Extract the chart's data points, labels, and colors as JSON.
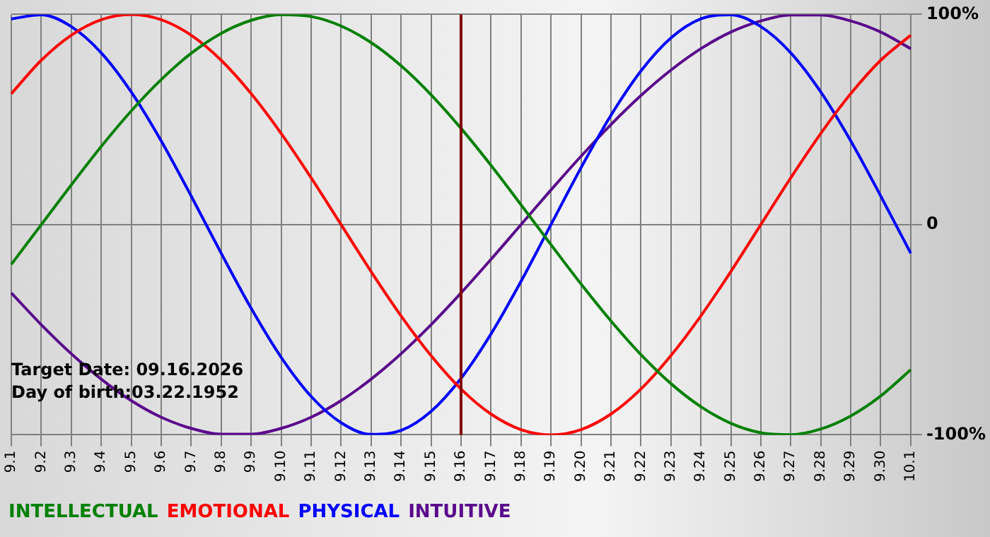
{
  "chart_data": {
    "type": "line",
    "categories": [
      "9.1",
      "9.2",
      "9.3",
      "9.4",
      "9.5",
      "9.6",
      "9.7",
      "9.8",
      "9.9",
      "9.10",
      "9.11",
      "9.12",
      "9.13",
      "9.14",
      "9.15",
      "9.16",
      "9.17",
      "9.18",
      "9.19",
      "9.20",
      "9.21",
      "9.22",
      "9.23",
      "9.24",
      "9.25",
      "9.26",
      "9.27",
      "9.28",
      "9.29",
      "9.30",
      "10.1"
    ],
    "series": [
      {
        "name": "INTELLECTUAL",
        "color": "#008000",
        "values": [
          -18.9,
          0,
          18.9,
          37.2,
          54.1,
          69.0,
          81.5,
          91.0,
          97.2,
          99.9,
          99.0,
          94.5,
          86.6,
          75.6,
          61.8,
          45.8,
          28.2,
          9.5,
          -9.5,
          -28.2,
          -45.8,
          -61.8,
          -75.6,
          -86.6,
          -94.5,
          -99.0,
          -99.9,
          -97.2,
          -91.0,
          -81.5,
          -69.0
        ]
      },
      {
        "name": "EMOTIONAL",
        "color": "#ff0000",
        "values": [
          62.3,
          78.2,
          90.1,
          97.5,
          100,
          97.5,
          90.1,
          78.2,
          62.3,
          43.4,
          22.3,
          0,
          -22.3,
          -43.4,
          -62.3,
          -78.2,
          -90.1,
          -97.5,
          -100,
          -97.5,
          -90.1,
          -78.2,
          -62.3,
          -43.4,
          -22.3,
          0,
          22.3,
          43.4,
          62.3,
          78.2,
          90.1
        ]
      },
      {
        "name": "PHYSICAL",
        "color": "#0000ff",
        "values": [
          97.9,
          99.8,
          94.2,
          81.7,
          63.1,
          39.8,
          13.6,
          -13.6,
          -39.8,
          -63.1,
          -81.7,
          -94.2,
          -99.8,
          -97.9,
          -88.8,
          -73.1,
          -52.0,
          -27.0,
          0,
          27.0,
          52.0,
          73.1,
          88.8,
          97.9,
          99.8,
          94.2,
          81.7,
          63.1,
          39.8,
          13.6,
          -13.6
        ]
      },
      {
        "name": "INTUITIVE",
        "color": "#5a0a8c",
        "values": [
          -32.5,
          -47.6,
          -61.4,
          -73.5,
          -83.7,
          -91.6,
          -96.9,
          -99.7,
          -99.7,
          -96.9,
          -91.6,
          -83.7,
          -73.5,
          -61.4,
          -47.6,
          -32.5,
          -16.5,
          0,
          16.5,
          32.5,
          47.6,
          61.4,
          73.5,
          83.7,
          91.6,
          96.9,
          99.7,
          99.7,
          96.9,
          91.6,
          83.7
        ]
      }
    ],
    "ylim": [
      -100,
      100
    ],
    "yticks": [
      {
        "value": -100,
        "label": "-100%"
      },
      0,
      {
        "value": 100,
        "label": "100%"
      }
    ],
    "grid": true,
    "legend": "bottom",
    "marker": "none",
    "line_style": "solid",
    "ref_lines": [
      {
        "axis": "x",
        "value": "9.16",
        "color": "#800000"
      }
    ],
    "annotations": [
      "Target Date: 09.16.2026",
      "Day of birth:03.22.1952"
    ]
  }
}
